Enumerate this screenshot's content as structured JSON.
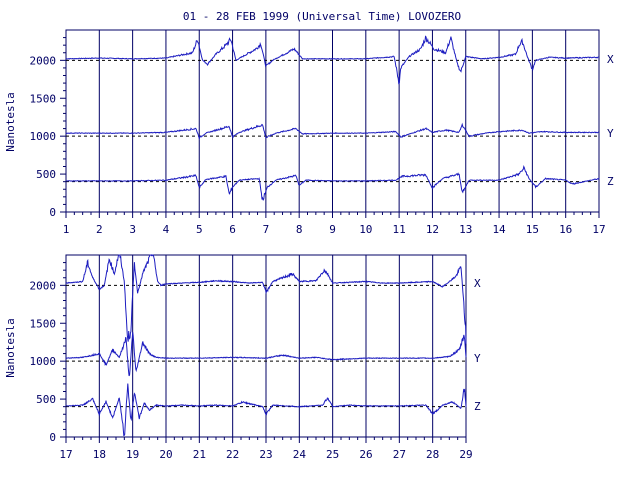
{
  "chart_data": {
    "type": "line",
    "title": "01 - 28 FEB 1999 (Universal Time) LOVOZERO",
    "ylabel": "Nanotesla",
    "xlabel": "",
    "grid": true,
    "colors": {
      "trace": "#1c1cc0",
      "axis": "#000066",
      "baseline": "#000000"
    },
    "panels": [
      {
        "xlim": [
          1,
          17
        ],
        "ylim": [
          0,
          2400
        ],
        "xticks": [
          "1",
          "2",
          "3",
          "4",
          "5",
          "6",
          "7",
          "8",
          "9",
          "10",
          "11",
          "12",
          "13",
          "14",
          "15",
          "16",
          "17"
        ],
        "yticks": [
          "0",
          "500",
          "1000",
          "1500",
          "2000"
        ],
        "baselines": [
          2000,
          1000,
          400
        ],
        "series": [
          {
            "name": "X",
            "base": 2020,
            "x": [
              1,
              2,
              3,
              4,
              4.8,
              4.95,
              5.1,
              5.25,
              5.5,
              5.8,
              5.95,
              6.1,
              6.7,
              6.85,
              7.0,
              7.2,
              7.85,
              7.95,
              8.1,
              9,
              10,
              10.85,
              11.0,
              11.05,
              11.3,
              11.65,
              11.8,
              12.05,
              12.4,
              12.55,
              12.75,
              12.85,
              13.0,
              13.5,
              14,
              14.5,
              14.6,
              14.7,
              14.85,
              15.0,
              15.1,
              15.5,
              16,
              17
            ],
            "y": [
              2020,
              2030,
              2020,
              2030,
              2100,
              2280,
              2000,
              1950,
              2080,
              2200,
              2280,
              2000,
              2150,
              2220,
              1920,
              2000,
              2150,
              2100,
              2020,
              2020,
              2020,
              2050,
              1700,
              1900,
              2050,
              2150,
              2300,
              2150,
              2100,
              2300,
              1950,
              1850,
              2050,
              2020,
              2040,
              2080,
              2200,
              2250,
              2050,
              1880,
              2000,
              2040,
              2030,
              2040
            ]
          },
          {
            "name": "Y",
            "base": 1040,
            "x": [
              1,
              2,
              3,
              4,
              4.9,
              5.0,
              5.2,
              5.9,
              6.0,
              6.2,
              6.9,
              7.0,
              7.3,
              7.9,
              8.1,
              9,
              10,
              10.9,
              11.05,
              11.8,
              12.0,
              12.4,
              12.8,
              12.9,
              13.1,
              13.6,
              14,
              14.7,
              14.9,
              15.3,
              16,
              17
            ],
            "y": [
              1040,
              1040,
              1040,
              1050,
              1100,
              980,
              1040,
              1130,
              990,
              1050,
              1150,
              980,
              1040,
              1100,
              1030,
              1040,
              1040,
              1060,
              990,
              1100,
              1050,
              1080,
              1050,
              1150,
              1000,
              1040,
              1060,
              1080,
              1040,
              1060,
              1050,
              1050
            ]
          },
          {
            "name": "Z",
            "base": 410,
            "x": [
              1,
              2,
              3,
              4,
              4.9,
              5.0,
              5.2,
              5.8,
              5.9,
              6.0,
              6.2,
              6.8,
              6.9,
              7.05,
              7.3,
              7.9,
              8.0,
              8.2,
              9,
              10,
              10.9,
              11.1,
              11.8,
              12.0,
              12.3,
              12.8,
              12.9,
              13.1,
              14,
              14.6,
              14.75,
              14.9,
              15.1,
              15.4,
              16,
              16.2,
              17
            ],
            "y": [
              410,
              410,
              410,
              420,
              480,
              320,
              430,
              470,
              230,
              330,
              420,
              440,
              150,
              330,
              420,
              480,
              350,
              420,
              410,
              410,
              420,
              470,
              490,
              320,
              440,
              500,
              250,
              420,
              420,
              500,
              580,
              440,
              330,
              440,
              420,
              370,
              440
            ]
          }
        ]
      },
      {
        "xlim": [
          17,
          29
        ],
        "ylim": [
          0,
          2400
        ],
        "xticks": [
          "17",
          "18",
          "19",
          "20",
          "21",
          "22",
          "23",
          "24",
          "25",
          "26",
          "27",
          "28",
          "29"
        ],
        "yticks": [
          "0",
          "500",
          "1000",
          "1500",
          "2000"
        ],
        "baselines": [
          2000,
          1000,
          400
        ],
        "series": [
          {
            "name": "X",
            "base": 2030,
            "x": [
              17,
              17.5,
              17.65,
              17.8,
              18.0,
              18.15,
              18.3,
              18.45,
              18.6,
              18.75,
              18.85,
              18.95,
              19.05,
              19.15,
              19.3,
              19.45,
              19.6,
              19.75,
              19.85,
              20.0,
              20.5,
              21,
              21.5,
              22,
              22.5,
              22.9,
              23.0,
              23.2,
              23.8,
              24.0,
              24.5,
              24.75,
              24.85,
              25.0,
              25.5,
              26,
              26.5,
              27,
              27.5,
              28,
              28.3,
              28.5,
              28.7,
              28.85,
              28.95,
              29
            ],
            "y": [
              2030,
              2050,
              2300,
              2100,
              1950,
              2000,
              2350,
              2150,
              2450,
              2050,
              1250,
              1450,
              2300,
              1900,
              2150,
              2300,
              2450,
              2050,
              2000,
              2020,
              2030,
              2040,
              2060,
              2050,
              2030,
              2040,
              1900,
              2050,
              2150,
              2050,
              2060,
              2200,
              2150,
              2030,
              2040,
              2050,
              2030,
              2030,
              2040,
              2050,
              1980,
              2050,
              2120,
              2250,
              1650,
              1300
            ]
          },
          {
            "name": "Y",
            "base": 1040,
            "x": [
              17,
              17.5,
              18.0,
              18.2,
              18.4,
              18.6,
              18.8,
              18.9,
              19.0,
              19.1,
              19.3,
              19.5,
              19.7,
              20.0,
              21,
              22,
              23,
              23.5,
              24,
              24.5,
              25,
              26,
              27,
              28,
              28.5,
              28.8,
              28.95,
              29
            ],
            "y": [
              1040,
              1050,
              1100,
              950,
              1150,
              1050,
              1300,
              750,
              1400,
              850,
              1250,
              1100,
              1050,
              1040,
              1040,
              1050,
              1040,
              1080,
              1040,
              1050,
              1020,
              1040,
              1040,
              1040,
              1060,
              1150,
              1350,
              1050
            ]
          },
          {
            "name": "Z",
            "base": 410,
            "x": [
              17,
              17.5,
              17.8,
              18.0,
              18.2,
              18.4,
              18.6,
              18.75,
              18.85,
              18.95,
              19.05,
              19.2,
              19.35,
              19.5,
              19.7,
              20.0,
              20.5,
              21,
              21.5,
              22,
              22.3,
              22.9,
              23.0,
              23.2,
              24,
              24.7,
              24.85,
              25.0,
              25.5,
              26,
              27,
              27.8,
              28.0,
              28.3,
              28.6,
              28.85,
              28.95,
              29
            ],
            "y": [
              410,
              420,
              500,
              300,
              470,
              250,
              520,
              0,
              700,
              200,
              600,
              250,
              450,
              350,
              420,
              410,
              420,
              410,
              420,
              410,
              460,
              400,
              300,
              420,
              400,
              420,
              520,
              400,
              420,
              410,
              410,
              420,
              300,
              420,
              460,
              380,
              650,
              400
            ]
          }
        ]
      }
    ]
  }
}
